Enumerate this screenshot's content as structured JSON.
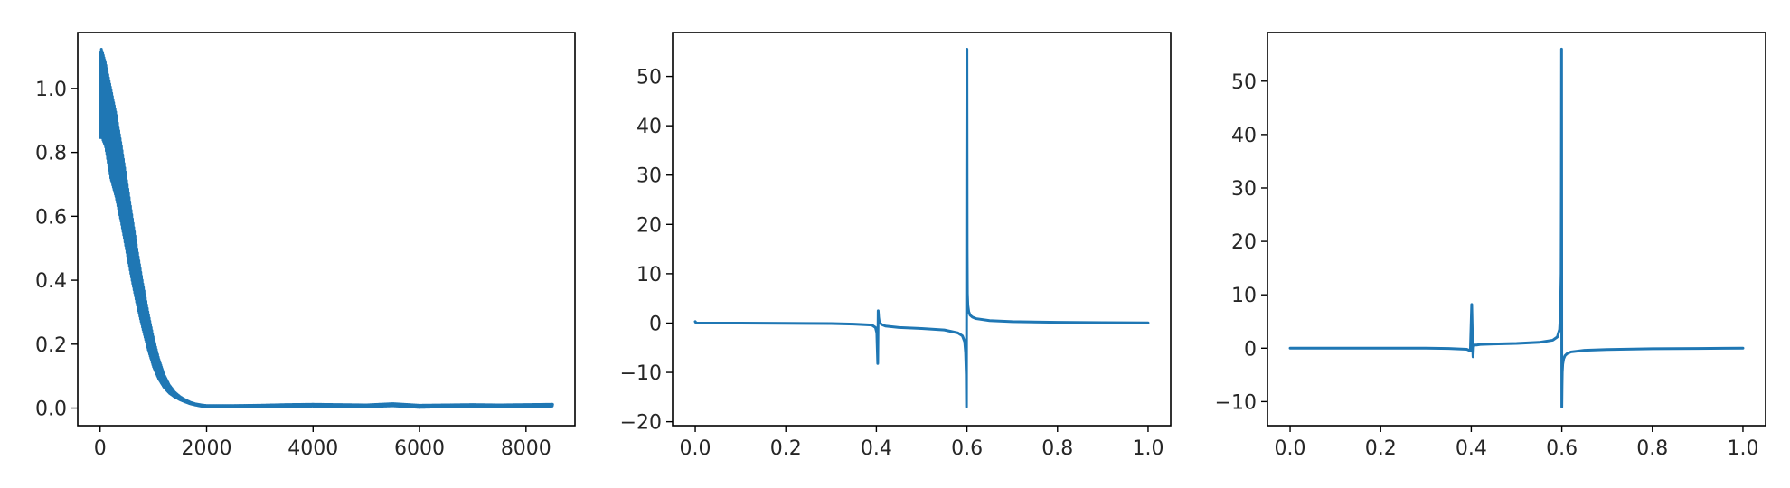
{
  "figure": {
    "colors": {
      "series": "#1f77b4",
      "axes": "#000000",
      "text": "#262626"
    }
  },
  "chart_data": [
    {
      "type": "line",
      "title": "",
      "xlabel": "",
      "ylabel": "",
      "xlim": [
        -420,
        8920
      ],
      "ylim": [
        -0.055,
        1.175
      ],
      "xticks": [
        0,
        2000,
        4000,
        6000,
        8000
      ],
      "xtick_labels": [
        "0",
        "2000",
        "4000",
        "6000",
        "8000"
      ],
      "yticks": [
        0.0,
        0.2,
        0.4,
        0.6,
        0.8,
        1.0
      ],
      "ytick_labels": [
        "0.0",
        "0.2",
        "0.4",
        "0.6",
        "0.8",
        "1.0"
      ],
      "grid": false,
      "legend": "none",
      "note_on_series": "noisy decaying curve drawn as a dense band between envelope values",
      "series": [
        {
          "x": [
            0,
            20,
            50,
            100,
            150,
            200,
            300,
            400,
            500,
            600,
            700,
            800,
            900,
            1000,
            1100,
            1200,
            1300,
            1400,
            1500,
            1600,
            1700,
            1800,
            1900,
            2000,
            2500,
            3000,
            3500,
            4000,
            4500,
            5000,
            5500,
            6000,
            6500,
            7000,
            7500,
            8000,
            8500
          ],
          "upper": [
            1.1,
            1.125,
            1.11,
            1.08,
            1.04,
            1.0,
            0.92,
            0.82,
            0.71,
            0.6,
            0.49,
            0.39,
            0.3,
            0.22,
            0.155,
            0.105,
            0.072,
            0.05,
            0.036,
            0.026,
            0.018,
            0.013,
            0.01,
            0.008,
            0.008,
            0.009,
            0.011,
            0.012,
            0.011,
            0.01,
            0.014,
            0.009,
            0.01,
            0.011,
            0.01,
            0.011,
            0.012
          ],
          "lower": [
            0.84,
            0.86,
            0.84,
            0.82,
            0.77,
            0.72,
            0.66,
            0.58,
            0.49,
            0.4,
            0.32,
            0.25,
            0.185,
            0.13,
            0.092,
            0.065,
            0.047,
            0.035,
            0.026,
            0.019,
            0.013,
            0.009,
            0.006,
            0.004,
            0.003,
            0.003,
            0.005,
            0.006,
            0.005,
            0.004,
            0.007,
            0.002,
            0.004,
            0.005,
            0.004,
            0.005,
            0.006
          ]
        }
      ]
    },
    {
      "type": "line",
      "title": "",
      "xlabel": "",
      "ylabel": "",
      "xlim": [
        -0.05,
        1.05
      ],
      "ylim": [
        -20.8,
        58.9
      ],
      "xticks": [
        0.0,
        0.2,
        0.4,
        0.6,
        0.8,
        1.0
      ],
      "xtick_labels": [
        "0.0",
        "0.2",
        "0.4",
        "0.6",
        "0.8",
        "1.0"
      ],
      "yticks": [
        -20,
        -10,
        0,
        10,
        20,
        30,
        40,
        50
      ],
      "ytick_labels": [
        "−20",
        "−10",
        "0",
        "10",
        "20",
        "30",
        "40",
        "50"
      ],
      "grid": false,
      "legend": "none",
      "series": [
        {
          "x": [
            0.0,
            0.002,
            0.1,
            0.2,
            0.3,
            0.35,
            0.39,
            0.398,
            0.401,
            0.403,
            0.404,
            0.405,
            0.406,
            0.408,
            0.412,
            0.42,
            0.45,
            0.5,
            0.55,
            0.58,
            0.59,
            0.595,
            0.597,
            0.5985,
            0.599,
            0.5995,
            0.6,
            0.6005,
            0.601,
            0.602,
            0.604,
            0.607,
            0.612,
            0.62,
            0.65,
            0.7,
            0.8,
            0.9,
            1.0
          ],
          "y": [
            0.3,
            0.0,
            0.0,
            -0.05,
            -0.1,
            -0.2,
            -0.4,
            -0.9,
            -2.0,
            -8.2,
            2.5,
            1.2,
            0.5,
            0.0,
            -0.3,
            -0.6,
            -0.9,
            -1.1,
            -1.4,
            -2.0,
            -2.6,
            -3.8,
            -6.0,
            -10.5,
            -17.0,
            30.0,
            55.5,
            15.0,
            6.0,
            3.6,
            2.3,
            1.6,
            1.2,
            0.9,
            0.5,
            0.3,
            0.15,
            0.08,
            0.05
          ]
        }
      ]
    },
    {
      "type": "line",
      "title": "",
      "xlabel": "",
      "ylabel": "",
      "xlim": [
        -0.05,
        1.05
      ],
      "ylim": [
        -14.5,
        59.1
      ],
      "xticks": [
        0.0,
        0.2,
        0.4,
        0.6,
        0.8,
        1.0
      ],
      "xtick_labels": [
        "0.0",
        "0.2",
        "0.4",
        "0.6",
        "0.8",
        "1.0"
      ],
      "yticks": [
        -10,
        0,
        10,
        20,
        30,
        40,
        50
      ],
      "ytick_labels": [
        "−10",
        "0",
        "10",
        "20",
        "30",
        "40",
        "50"
      ],
      "grid": false,
      "legend": "none",
      "series": [
        {
          "x": [
            0.0,
            0.1,
            0.2,
            0.3,
            0.35,
            0.39,
            0.398,
            0.401,
            0.403,
            0.404,
            0.405,
            0.406,
            0.408,
            0.412,
            0.42,
            0.45,
            0.5,
            0.55,
            0.58,
            0.59,
            0.595,
            0.597,
            0.5985,
            0.599,
            0.5995,
            0.6,
            0.6005,
            0.601,
            0.602,
            0.604,
            0.607,
            0.612,
            0.62,
            0.65,
            0.7,
            0.8,
            0.9,
            1.0
          ],
          "y": [
            0.0,
            0.0,
            0.0,
            0.0,
            -0.05,
            -0.2,
            -0.5,
            8.2,
            0.5,
            -1.6,
            0.2,
            0.5,
            0.6,
            0.6,
            0.7,
            0.8,
            0.9,
            1.1,
            1.5,
            2.1,
            3.5,
            6.5,
            14.0,
            30.0,
            56.0,
            -11.0,
            -7.0,
            -4.5,
            -3.0,
            -2.0,
            -1.4,
            -1.0,
            -0.7,
            -0.4,
            -0.25,
            -0.1,
            -0.05,
            0.0
          ]
        }
      ]
    }
  ]
}
